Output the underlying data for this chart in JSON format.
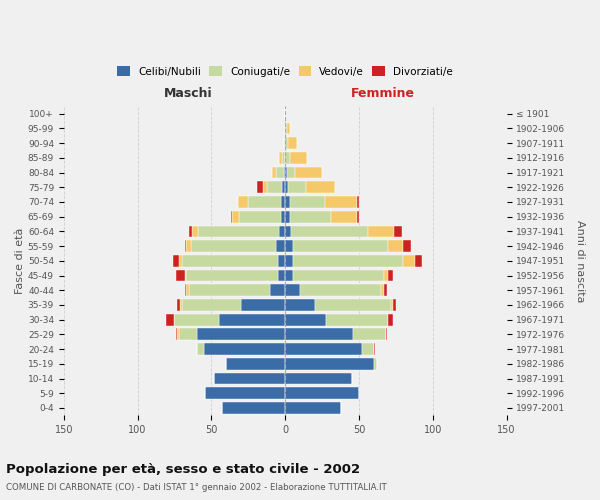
{
  "age_groups": [
    "0-4",
    "5-9",
    "10-14",
    "15-19",
    "20-24",
    "25-29",
    "30-34",
    "35-39",
    "40-44",
    "45-49",
    "50-54",
    "55-59",
    "60-64",
    "65-69",
    "70-74",
    "75-79",
    "80-84",
    "85-89",
    "90-94",
    "95-99",
    "100+"
  ],
  "birth_years": [
    "1997-2001",
    "1992-1996",
    "1987-1991",
    "1982-1986",
    "1977-1981",
    "1972-1976",
    "1967-1971",
    "1962-1966",
    "1957-1961",
    "1952-1956",
    "1947-1951",
    "1942-1946",
    "1937-1941",
    "1932-1936",
    "1927-1931",
    "1922-1926",
    "1917-1921",
    "1912-1916",
    "1907-1911",
    "1902-1906",
    "≤ 1901"
  ],
  "maschi": {
    "celibi": [
      43,
      54,
      48,
      40,
      55,
      60,
      45,
      30,
      10,
      5,
      5,
      6,
      4,
      3,
      3,
      2,
      1,
      0,
      0,
      0,
      0
    ],
    "coniugati": [
      0,
      0,
      0,
      0,
      5,
      12,
      30,
      40,
      55,
      62,
      65,
      58,
      55,
      28,
      22,
      10,
      5,
      2,
      1,
      0,
      0
    ],
    "vedovi": [
      0,
      0,
      0,
      0,
      0,
      1,
      0,
      1,
      2,
      1,
      2,
      3,
      4,
      5,
      7,
      3,
      3,
      2,
      0,
      0,
      0
    ],
    "divorziati": [
      0,
      0,
      0,
      0,
      0,
      1,
      6,
      2,
      1,
      6,
      4,
      1,
      2,
      1,
      0,
      4,
      0,
      0,
      0,
      0,
      0
    ]
  },
  "femmine": {
    "nubili": [
      38,
      50,
      45,
      60,
      52,
      46,
      28,
      20,
      10,
      5,
      5,
      5,
      4,
      3,
      3,
      2,
      1,
      0,
      0,
      0,
      0
    ],
    "coniugate": [
      0,
      0,
      0,
      2,
      8,
      22,
      42,
      52,
      55,
      62,
      75,
      65,
      52,
      28,
      24,
      12,
      6,
      3,
      2,
      1,
      0
    ],
    "vedove": [
      0,
      0,
      0,
      0,
      0,
      0,
      0,
      1,
      2,
      3,
      8,
      10,
      18,
      18,
      22,
      20,
      18,
      12,
      6,
      2,
      0
    ],
    "divorziate": [
      0,
      0,
      0,
      0,
      1,
      1,
      3,
      2,
      2,
      3,
      5,
      5,
      5,
      1,
      1,
      0,
      0,
      0,
      0,
      0,
      0
    ]
  },
  "colors": {
    "celibi": "#3a6ca8",
    "coniugati": "#c5d9a0",
    "vedovi": "#f5c96a",
    "divorziati": "#cc2222"
  },
  "xlim": 150,
  "title": "Popolazione per età, sesso e stato civile - 2002",
  "subtitle": "COMUNE DI CARBONATE (CO) - Dati ISTAT 1° gennaio 2002 - Elaborazione TUTTITALIA.IT",
  "xlabel_left": "Maschi",
  "xlabel_right": "Femmine",
  "ylabel_left": "Fasce di età",
  "ylabel_right": "Anni di nascita",
  "legend_labels": [
    "Celibi/Nubili",
    "Coniugati/e",
    "Vedovi/e",
    "Divorziati/e"
  ],
  "background_color": "#f0f0f0"
}
